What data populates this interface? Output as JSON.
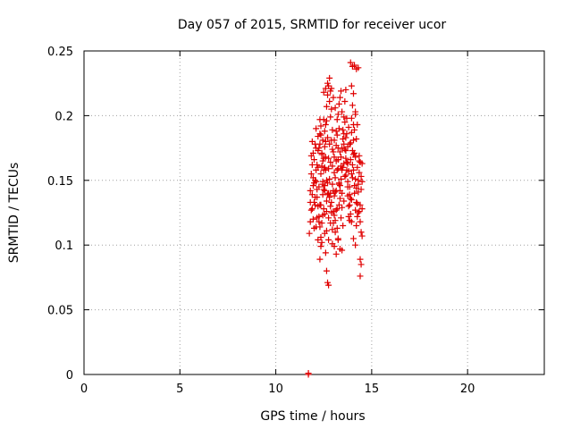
{
  "chart_data": {
    "type": "scatter",
    "title": "Day 057 of 2015, SRMTID for receiver ucor",
    "xlabel": "GPS time / hours",
    "ylabel": "SRMTID / TECUs",
    "xlim": [
      0,
      24
    ],
    "ylim": [
      0,
      0.25
    ],
    "x_ticks": [
      0,
      5,
      10,
      15,
      20
    ],
    "x_tick_labels": [
      "0",
      "5",
      "10",
      "15",
      "20"
    ],
    "y_ticks": [
      0,
      0.05,
      0.1,
      0.15,
      0.2,
      0.25
    ],
    "y_tick_labels": [
      "0",
      "0.05",
      "0.1",
      "0.15",
      "0.2",
      "0.25"
    ],
    "grid": true,
    "marker": "+",
    "color": "#e00000",
    "outlier_points": [
      [
        11.7,
        0.0
      ],
      [
        11.7,
        0.001
      ]
    ],
    "series": [
      {
        "values": [
          [
            11.75,
            0.109
          ],
          [
            11.8,
            0.118
          ],
          [
            11.85,
            0.127
          ],
          [
            11.9,
            0.139
          ],
          [
            11.95,
            0.152
          ],
          [
            12.0,
            0.166
          ],
          [
            12.05,
            0.178
          ],
          [
            12.1,
            0.158
          ],
          [
            12.15,
            0.121
          ],
          [
            12.2,
            0.104
          ],
          [
            11.8,
            0.142
          ],
          [
            11.85,
            0.169
          ],
          [
            11.9,
            0.18
          ],
          [
            11.95,
            0.171
          ],
          [
            12.0,
            0.148
          ],
          [
            12.05,
            0.131
          ],
          [
            12.1,
            0.114
          ],
          [
            12.15,
            0.137
          ],
          [
            12.2,
            0.16
          ],
          [
            12.25,
            0.175
          ],
          [
            12.3,
            0.186
          ],
          [
            12.35,
            0.192
          ],
          [
            12.4,
            0.171
          ],
          [
            12.45,
            0.149
          ],
          [
            12.5,
            0.128
          ],
          [
            12.55,
            0.109
          ],
          [
            12.6,
            0.094
          ],
          [
            12.65,
            0.08
          ],
          [
            12.7,
            0.071
          ],
          [
            12.75,
            0.069
          ],
          [
            12.3,
            0.089
          ],
          [
            12.35,
            0.099
          ],
          [
            12.4,
            0.117
          ],
          [
            12.45,
            0.139
          ],
          [
            12.5,
            0.158
          ],
          [
            12.55,
            0.176
          ],
          [
            12.6,
            0.193
          ],
          [
            12.65,
            0.207
          ],
          [
            12.7,
            0.216
          ],
          [
            12.75,
            0.223
          ],
          [
            12.8,
            0.229
          ],
          [
            12.85,
            0.219
          ],
          [
            12.9,
            0.205
          ],
          [
            12.95,
            0.189
          ],
          [
            13.0,
            0.172
          ],
          [
            13.05,
            0.156
          ],
          [
            13.1,
            0.141
          ],
          [
            13.15,
            0.127
          ],
          [
            13.2,
            0.113
          ],
          [
            13.25,
            0.104
          ],
          [
            12.3,
            0.197
          ],
          [
            12.35,
            0.185
          ],
          [
            12.45,
            0.165
          ],
          [
            12.55,
            0.146
          ],
          [
            12.65,
            0.134
          ],
          [
            12.75,
            0.121
          ],
          [
            12.85,
            0.13
          ],
          [
            12.95,
            0.147
          ],
          [
            13.05,
            0.168
          ],
          [
            13.15,
            0.188
          ],
          [
            13.25,
            0.201
          ],
          [
            13.35,
            0.214
          ],
          [
            13.45,
            0.203
          ],
          [
            13.55,
            0.186
          ],
          [
            13.65,
            0.167
          ],
          [
            13.75,
            0.149
          ],
          [
            13.85,
            0.131
          ],
          [
            13.95,
            0.118
          ],
          [
            14.05,
            0.105
          ],
          [
            14.15,
            0.1
          ],
          [
            13.3,
            0.131
          ],
          [
            13.35,
            0.146
          ],
          [
            13.4,
            0.161
          ],
          [
            13.45,
            0.175
          ],
          [
            13.5,
            0.189
          ],
          [
            13.55,
            0.199
          ],
          [
            13.6,
            0.211
          ],
          [
            13.65,
            0.22
          ],
          [
            13.7,
            0.198
          ],
          [
            13.75,
            0.176
          ],
          [
            13.8,
            0.157
          ],
          [
            13.85,
            0.139
          ],
          [
            13.9,
            0.124
          ],
          [
            13.95,
            0.135
          ],
          [
            14.0,
            0.152
          ],
          [
            14.05,
            0.17
          ],
          [
            14.1,
            0.189
          ],
          [
            14.15,
            0.203
          ],
          [
            14.2,
            0.182
          ],
          [
            14.25,
            0.16
          ],
          [
            14.3,
            0.141
          ],
          [
            14.35,
            0.126
          ],
          [
            14.4,
            0.118
          ],
          [
            14.45,
            0.143
          ],
          [
            14.5,
            0.163
          ],
          [
            14.45,
            0.11
          ],
          [
            14.5,
            0.107
          ],
          [
            14.4,
            0.089
          ],
          [
            14.45,
            0.085
          ],
          [
            14.4,
            0.076
          ],
          [
            13.9,
            0.241
          ],
          [
            14.0,
            0.238
          ],
          [
            14.1,
            0.239
          ],
          [
            14.2,
            0.236
          ],
          [
            14.3,
            0.237
          ],
          [
            13.95,
            0.223
          ],
          [
            14.05,
            0.217
          ],
          [
            14.15,
            0.201
          ],
          [
            14.25,
            0.193
          ],
          [
            14.35,
            0.165
          ],
          [
            12.05,
            0.137
          ],
          [
            12.1,
            0.149
          ],
          [
            12.15,
            0.162
          ],
          [
            12.2,
            0.173
          ],
          [
            12.25,
            0.145
          ],
          [
            12.3,
            0.131
          ],
          [
            12.35,
            0.155
          ],
          [
            12.4,
            0.161
          ],
          [
            12.45,
            0.181
          ],
          [
            12.5,
            0.197
          ],
          [
            12.55,
            0.188
          ],
          [
            12.6,
            0.168
          ],
          [
            12.65,
            0.15
          ],
          [
            12.7,
            0.139
          ],
          [
            12.75,
            0.159
          ],
          [
            12.8,
            0.178
          ],
          [
            12.85,
            0.199
          ],
          [
            12.9,
            0.181
          ],
          [
            12.95,
            0.161
          ],
          [
            13.0,
            0.142
          ],
          [
            13.05,
            0.123
          ],
          [
            13.1,
            0.11
          ],
          [
            13.15,
            0.142
          ],
          [
            13.2,
            0.158
          ],
          [
            13.25,
            0.175
          ],
          [
            13.3,
            0.19
          ],
          [
            13.35,
            0.172
          ],
          [
            13.4,
            0.151
          ],
          [
            13.45,
            0.129
          ],
          [
            13.5,
            0.115
          ],
          [
            13.55,
            0.134
          ],
          [
            13.6,
            0.153
          ],
          [
            13.65,
            0.173
          ],
          [
            13.7,
            0.158
          ],
          [
            13.75,
            0.138
          ],
          [
            13.8,
            0.122
          ],
          [
            13.85,
            0.145
          ],
          [
            13.9,
            0.166
          ],
          [
            13.95,
            0.187
          ],
          [
            14.0,
            0.208
          ],
          [
            14.05,
            0.193
          ],
          [
            14.1,
            0.171
          ],
          [
            14.15,
            0.151
          ],
          [
            14.2,
            0.133
          ],
          [
            14.25,
            0.122
          ],
          [
            14.3,
            0.147
          ],
          [
            14.35,
            0.156
          ],
          [
            14.4,
            0.164
          ],
          [
            14.45,
            0.153
          ],
          [
            14.5,
            0.128
          ],
          [
            11.9,
            0.128
          ],
          [
            11.95,
            0.12
          ],
          [
            12.0,
            0.113
          ],
          [
            12.05,
            0.15
          ],
          [
            12.1,
            0.175
          ],
          [
            12.15,
            0.143
          ],
          [
            12.2,
            0.13
          ],
          [
            12.25,
            0.122
          ],
          [
            12.3,
            0.114
          ],
          [
            12.35,
            0.106
          ],
          [
            12.4,
            0.102
          ],
          [
            12.45,
            0.123
          ],
          [
            12.5,
            0.143
          ],
          [
            12.55,
            0.16
          ],
          [
            12.6,
            0.18
          ],
          [
            12.65,
            0.196
          ],
          [
            12.7,
            0.183
          ],
          [
            12.75,
            0.167
          ],
          [
            12.8,
            0.151
          ],
          [
            12.85,
            0.14
          ],
          [
            12.9,
            0.125
          ],
          [
            12.95,
            0.112
          ],
          [
            13.0,
            0.126
          ],
          [
            13.05,
            0.138
          ],
          [
            13.1,
            0.152
          ],
          [
            13.15,
            0.165
          ],
          [
            13.2,
            0.185
          ],
          [
            13.25,
            0.166
          ],
          [
            13.3,
            0.148
          ],
          [
            13.35,
            0.136
          ],
          [
            13.4,
            0.121
          ],
          [
            13.45,
            0.14
          ],
          [
            13.5,
            0.16
          ],
          [
            13.55,
            0.178
          ],
          [
            13.6,
            0.195
          ],
          [
            13.65,
            0.183
          ],
          [
            13.7,
            0.164
          ],
          [
            13.75,
            0.145
          ],
          [
            13.8,
            0.13
          ],
          [
            13.85,
            0.119
          ],
          [
            13.9,
            0.136
          ],
          [
            13.95,
            0.155
          ],
          [
            14.0,
            0.173
          ],
          [
            14.05,
            0.158
          ],
          [
            14.1,
            0.14
          ],
          [
            14.15,
            0.127
          ],
          [
            14.2,
            0.115
          ],
          [
            14.25,
            0.132
          ],
          [
            14.3,
            0.15
          ],
          [
            14.35,
            0.169
          ],
          [
            12.5,
            0.218
          ],
          [
            12.6,
            0.221
          ],
          [
            12.7,
            0.225
          ],
          [
            12.8,
            0.211
          ],
          [
            12.9,
            0.221
          ],
          [
            13.0,
            0.214
          ],
          [
            13.1,
            0.206
          ],
          [
            13.2,
            0.197
          ],
          [
            13.3,
            0.209
          ],
          [
            13.4,
            0.219
          ],
          [
            12.1,
            0.19
          ],
          [
            12.2,
            0.184
          ],
          [
            12.3,
            0.178
          ],
          [
            12.4,
            0.17
          ],
          [
            12.5,
            0.167
          ],
          [
            12.6,
            0.158
          ],
          [
            12.7,
            0.148
          ],
          [
            12.8,
            0.137
          ],
          [
            12.9,
            0.133
          ],
          [
            13.0,
            0.117
          ],
          [
            13.1,
            0.119
          ],
          [
            13.2,
            0.128
          ],
          [
            13.3,
            0.147
          ],
          [
            13.4,
            0.168
          ],
          [
            13.5,
            0.182
          ],
          [
            13.6,
            0.174
          ],
          [
            13.7,
            0.186
          ],
          [
            13.8,
            0.191
          ],
          [
            13.9,
            0.179
          ],
          [
            14.0,
            0.162
          ],
          [
            14.1,
            0.146
          ],
          [
            14.2,
            0.144
          ],
          [
            14.3,
            0.125
          ],
          [
            14.4,
            0.131
          ],
          [
            14.5,
            0.149
          ],
          [
            11.8,
            0.133
          ],
          [
            11.85,
            0.155
          ],
          [
            11.9,
            0.162
          ],
          [
            11.95,
            0.146
          ],
          [
            12.0,
            0.133
          ],
          [
            12.55,
            0.124
          ],
          [
            12.65,
            0.111
          ],
          [
            12.75,
            0.104
          ],
          [
            12.85,
            0.117
          ],
          [
            12.95,
            0.101
          ],
          [
            13.05,
            0.099
          ],
          [
            13.15,
            0.093
          ],
          [
            13.25,
            0.105
          ],
          [
            13.35,
            0.097
          ],
          [
            13.45,
            0.096
          ],
          [
            12.25,
            0.118
          ],
          [
            12.35,
            0.131
          ],
          [
            12.45,
            0.147
          ],
          [
            12.55,
            0.142
          ],
          [
            12.65,
            0.126
          ],
          [
            12.75,
            0.14
          ],
          [
            12.85,
            0.164
          ],
          [
            12.95,
            0.174
          ],
          [
            13.05,
            0.181
          ],
          [
            13.15,
            0.177
          ],
          [
            13.25,
            0.159
          ],
          [
            13.35,
            0.142
          ],
          [
            13.45,
            0.158
          ],
          [
            13.55,
            0.163
          ],
          [
            13.65,
            0.154
          ],
          [
            13.75,
            0.163
          ],
          [
            13.85,
            0.178
          ],
          [
            13.95,
            0.198
          ],
          [
            14.05,
            0.181
          ],
          [
            14.15,
            0.168
          ]
        ]
      }
    ]
  }
}
